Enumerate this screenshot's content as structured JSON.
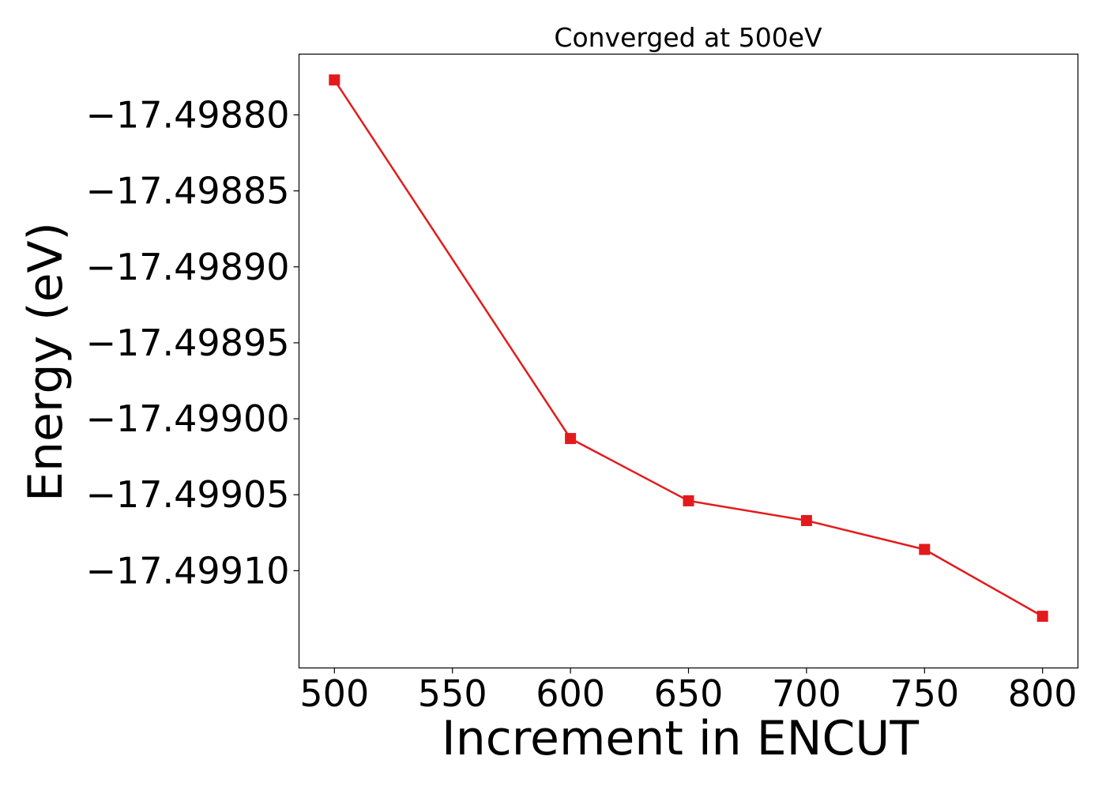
{
  "chart_data": {
    "type": "line",
    "title": "Converged at 500eV",
    "xlabel": "Increment in ENCUT",
    "ylabel": "Energy (eV)",
    "xlim": [
      485,
      815
    ],
    "ylim": [
      -17.499164,
      -17.49876
    ],
    "grid": false,
    "legend": "none",
    "x_ticks": [
      500,
      550,
      600,
      650,
      700,
      750,
      800
    ],
    "x_tick_labels": [
      "500",
      "550",
      "600",
      "650",
      "700",
      "750",
      "800"
    ],
    "y_ticks": [
      -17.4988,
      -17.49885,
      -17.4989,
      -17.49895,
      -17.499,
      -17.49905,
      -17.4991
    ],
    "y_tick_labels": [
      "−17.49880",
      "−17.49885",
      "−17.49890",
      "−17.49895",
      "−17.49900",
      "−17.49905",
      "−17.49910"
    ],
    "series": [
      {
        "color": "#e31a1c",
        "marker": "square",
        "x": [
          500,
          600,
          650,
          700,
          750,
          800
        ],
        "y": [
          -17.498777,
          -17.499013,
          -17.499054,
          -17.499067,
          -17.499086,
          -17.49913
        ]
      }
    ]
  }
}
